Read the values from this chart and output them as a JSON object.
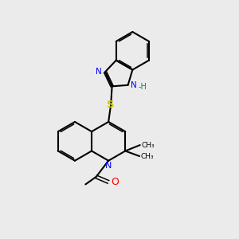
{
  "background_color": "#ebebeb",
  "bond_color": "#000000",
  "N_color": "#0000ff",
  "O_color": "#ff0000",
  "S_color": "#cccc00",
  "H_color": "#008080",
  "figsize": [
    3.0,
    3.0
  ],
  "dpi": 100,
  "xlim": [
    0,
    10
  ],
  "ylim": [
    0,
    10
  ]
}
